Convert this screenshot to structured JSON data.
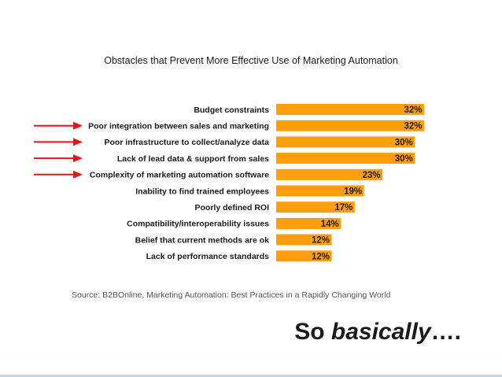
{
  "colors": {
    "bar": "#FF9E0D",
    "arrow": "#E8141B",
    "text": "#1a1a1a"
  },
  "chart_data": {
    "type": "bar",
    "orientation": "horizontal",
    "title": "Obstacles that Prevent More Effective Use of Marketing Automation",
    "categories": [
      "Budget constraints",
      "Poor integration between sales and marketing",
      "Poor infrastructure to collect/analyze data",
      "Lack of lead data & support from sales",
      "Complexity of marketing automation software",
      "Inability to find trained employees",
      "Poorly defined ROI",
      "Compatibility/interoperability issues",
      "Belief that current methods are ok",
      "Lack of performance standards"
    ],
    "values": [
      32,
      32,
      30,
      30,
      23,
      19,
      17,
      14,
      12,
      12
    ],
    "value_labels": [
      "32%",
      "32%",
      "30%",
      "30%",
      "23%",
      "19%",
      "17%",
      "14%",
      "12%",
      "12%"
    ],
    "highlighted": [
      false,
      true,
      true,
      true,
      true,
      false,
      false,
      false,
      false,
      false
    ],
    "xlim": [
      0,
      32
    ],
    "grid": false,
    "legend": "none"
  },
  "source": "Source: B2BOnline, Marketing Automation: Best Practices in a Rapidly Changing World",
  "tagline": {
    "lead": "So ",
    "emphasis": "basically",
    "trail": "…."
  }
}
